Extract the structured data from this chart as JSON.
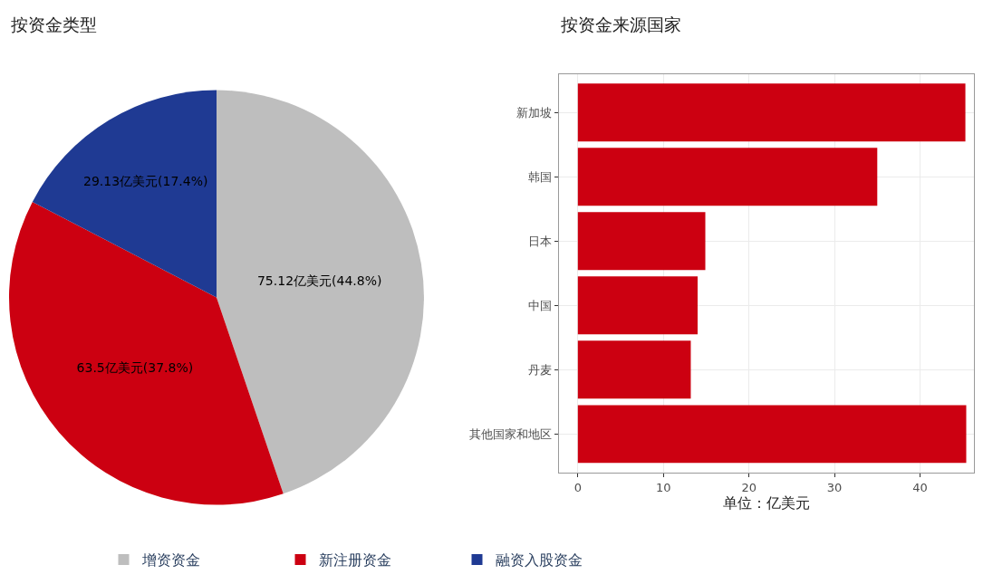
{
  "chart_data": [
    {
      "type": "pie",
      "title": "按资金类型",
      "categories": [
        "增资资金",
        "新注册资金",
        "融资入股资金"
      ],
      "values": [
        75.12,
        63.5,
        29.13
      ],
      "colors": [
        "#bebebe",
        "#cc0011",
        "#1f3a93"
      ],
      "value_labels": [
        "75.12亿美元(44.8%)",
        "63.5亿美元(37.8%)",
        "29.13亿美元(17.4%)"
      ],
      "legend": "bottom"
    },
    {
      "type": "bar",
      "title": "按资金来源国家",
      "orientation": "horizontal",
      "categories": [
        "新加坡",
        "韩国",
        "日本",
        "中国",
        "丹麦",
        "其他国家和地区"
      ],
      "values": [
        45.3,
        35.0,
        14.9,
        14.0,
        13.2,
        45.4
      ],
      "color": "#cc0011",
      "xlabel": "单位：亿美元",
      "xlim": [
        -2.2,
        46.3
      ],
      "xticks": [
        0,
        10,
        20,
        30,
        40
      ],
      "grid": true
    }
  ]
}
